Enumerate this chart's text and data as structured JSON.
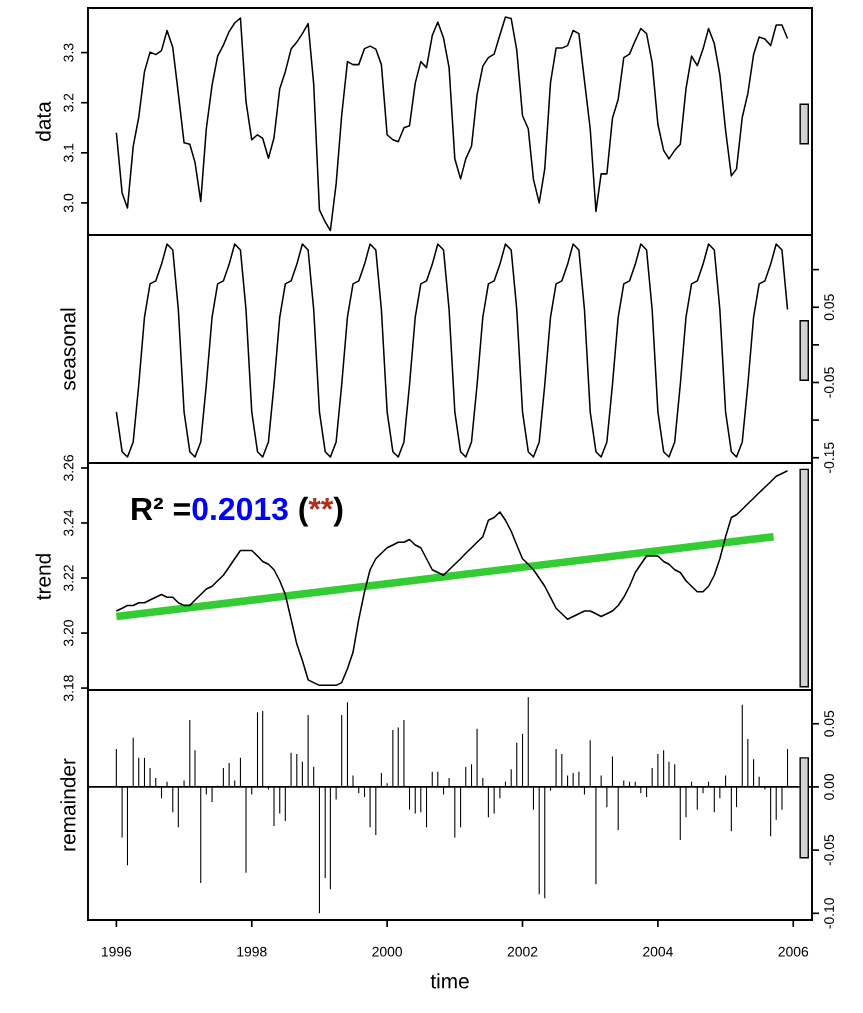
{
  "chart_data": [
    {
      "type": "line",
      "ylabel": "data",
      "tick_labels": "y",
      "x": [
        "1996-01",
        "1996-02",
        "1996-03",
        "1996-04",
        "1996-05",
        "1996-06",
        "1996-07",
        "1996-08",
        "1996-09",
        "1996-10",
        "1996-11",
        "1996-12",
        "1997-01",
        "1997-02",
        "1997-03",
        "1997-04",
        "1997-05",
        "1997-06",
        "1997-07",
        "1997-08",
        "1997-09",
        "1997-10",
        "1997-11",
        "1997-12",
        "1998-01",
        "1998-02",
        "1998-03",
        "1998-04",
        "1998-05",
        "1998-06",
        "1998-07",
        "1998-08",
        "1998-09",
        "1998-10",
        "1998-11",
        "1998-12",
        "1999-01",
        "1999-02",
        "1999-03",
        "1999-04",
        "1999-05",
        "1999-06",
        "1999-07",
        "1999-08",
        "1999-09",
        "1999-10",
        "1999-11",
        "1999-12",
        "2000-01",
        "2000-02",
        "2000-03",
        "2000-04",
        "2000-05",
        "2000-06",
        "2000-07",
        "2000-08",
        "2000-09",
        "2000-10",
        "2000-11",
        "2000-12",
        "2001-01",
        "2001-02",
        "2001-03",
        "2001-04",
        "2001-05",
        "2001-06",
        "2001-07",
        "2001-08",
        "2001-09",
        "2001-10",
        "2001-11",
        "2001-12",
        "2002-01",
        "2002-02",
        "2002-03",
        "2002-04",
        "2002-05",
        "2002-06",
        "2002-07",
        "2002-08",
        "2002-09",
        "2002-10",
        "2002-11",
        "2002-12",
        "2003-01",
        "2003-02",
        "2003-03",
        "2003-04",
        "2003-05",
        "2003-06",
        "2003-07",
        "2003-08",
        "2003-09",
        "2003-10",
        "2003-11",
        "2003-12",
        "2004-01",
        "2004-02",
        "2004-03",
        "2004-04",
        "2004-05",
        "2004-06",
        "2004-07",
        "2004-08",
        "2004-09",
        "2004-10",
        "2004-11",
        "2004-12",
        "2005-01",
        "2005-02",
        "2005-03",
        "2005-04",
        "2005-05",
        "2005-06",
        "2005-07",
        "2005-08",
        "2005-09",
        "2005-10",
        "2005-11",
        "2005-12"
      ],
      "series": [
        {
          "color": "#000000",
          "values": [
            3.14,
            3.02,
            2.99,
            3.113,
            3.171,
            3.262,
            3.301,
            3.296,
            3.304,
            3.344,
            3.31,
            3.218,
            3.12,
            3.117,
            3.081,
            3.003,
            3.148,
            3.235,
            3.293,
            3.315,
            3.342,
            3.359,
            3.369,
            3.202,
            3.126,
            3.136,
            3.129,
            3.089,
            3.13,
            3.228,
            3.262,
            3.307,
            3.321,
            3.338,
            3.358,
            3.237,
            2.986,
            2.962,
            2.945,
            3.038,
            3.175,
            3.282,
            3.276,
            3.276,
            3.308,
            3.313,
            3.307,
            3.276,
            3.136,
            3.126,
            3.122,
            3.15,
            3.154,
            3.239,
            3.282,
            3.27,
            3.334,
            3.361,
            3.329,
            3.27,
            3.088,
            3.048,
            3.088,
            3.113,
            3.216,
            3.273,
            3.29,
            3.297,
            3.335,
            3.371,
            3.368,
            3.305,
            3.174,
            3.148,
            3.047,
            3.0,
            3.068,
            3.24,
            3.309,
            3.309,
            3.314,
            3.344,
            3.338,
            3.244,
            3.148,
            2.983,
            3.058,
            3.058,
            3.169,
            3.207,
            3.29,
            3.297,
            3.324,
            3.348,
            3.338,
            3.28,
            3.157,
            3.105,
            3.088,
            3.105,
            3.117,
            3.228,
            3.293,
            3.274,
            3.307,
            3.348,
            3.318,
            3.256,
            3.145,
            3.054,
            3.068,
            3.171,
            3.218,
            3.296,
            3.331,
            3.327,
            3.314,
            3.355,
            3.355,
            3.328
          ]
        },
        {
          "type": "bar",
          "x": [
            "2006-03-01"
          ],
          "base": [
            3.118
          ],
          "values": [
            0.079
          ],
          "color": "#d3d3d3"
        }
      ],
      "ylim": [
        2.936,
        3.389
      ],
      "yticks": [
        {
          "value": 3,
          "label": "3.0"
        },
        3.1,
        3.2,
        3.3
      ],
      "xlim": [
        "1995-08-01",
        "2006-04-12"
      ],
      "xticks": [
        "1996",
        "1998",
        "2000",
        "2002",
        "2004",
        "2006"
      ]
    },
    {
      "type": "line",
      "ylabel": "seasonal",
      "tick_labels": "y",
      "x": [
        "1996-01",
        "1996-02",
        "1996-03",
        "1996-04",
        "1996-05",
        "1996-06",
        "1996-07",
        "1996-08",
        "1996-09",
        "1996-10",
        "1996-11",
        "1996-12",
        "1997-01",
        "1997-02",
        "1997-03",
        "1997-04",
        "1997-05",
        "1997-06",
        "1997-07",
        "1997-08",
        "1997-09",
        "1997-10",
        "1997-11",
        "1997-12",
        "1998-01",
        "1998-02",
        "1998-03",
        "1998-04",
        "1998-05",
        "1998-06",
        "1998-07",
        "1998-08",
        "1998-09",
        "1998-10",
        "1998-11",
        "1998-12",
        "1999-01",
        "1999-02",
        "1999-03",
        "1999-04",
        "1999-05",
        "1999-06",
        "1999-07",
        "1999-08",
        "1999-09",
        "1999-10",
        "1999-11",
        "1999-12",
        "2000-01",
        "2000-02",
        "2000-03",
        "2000-04",
        "2000-05",
        "2000-06",
        "2000-07",
        "2000-08",
        "2000-09",
        "2000-10",
        "2000-11",
        "2000-12",
        "2001-01",
        "2001-02",
        "2001-03",
        "2001-04",
        "2001-05",
        "2001-06",
        "2001-07",
        "2001-08",
        "2001-09",
        "2001-10",
        "2001-11",
        "2001-12",
        "2002-01",
        "2002-02",
        "2002-03",
        "2002-04",
        "2002-05",
        "2002-06",
        "2002-07",
        "2002-08",
        "2002-09",
        "2002-10",
        "2002-11",
        "2002-12",
        "2003-01",
        "2003-02",
        "2003-03",
        "2003-04",
        "2003-05",
        "2003-06",
        "2003-07",
        "2003-08",
        "2003-09",
        "2003-10",
        "2003-11",
        "2003-12",
        "2004-01",
        "2004-02",
        "2004-03",
        "2004-04",
        "2004-05",
        "2004-06",
        "2004-07",
        "2004-08",
        "2004-09",
        "2004-10",
        "2004-11",
        "2004-12",
        "2005-01",
        "2005-02",
        "2005-03",
        "2005-04",
        "2005-05",
        "2005-06",
        "2005-07",
        "2005-08",
        "2005-09",
        "2005-10",
        "2005-11",
        "2005-12"
      ],
      "series": [
        {
          "color": "#000000",
          "values": [
            -0.089,
            -0.142,
            -0.149,
            -0.129,
            -0.053,
            0.037,
            0.081,
            0.085,
            0.107,
            0.134,
            0.126,
            0.047,
            -0.089,
            -0.142,
            -0.149,
            -0.129,
            -0.053,
            0.037,
            0.081,
            0.085,
            0.107,
            0.134,
            0.126,
            0.047,
            -0.089,
            -0.142,
            -0.149,
            -0.129,
            -0.053,
            0.037,
            0.081,
            0.085,
            0.107,
            0.134,
            0.126,
            0.047,
            -0.089,
            -0.142,
            -0.149,
            -0.129,
            -0.053,
            0.037,
            0.081,
            0.085,
            0.107,
            0.134,
            0.126,
            0.047,
            -0.089,
            -0.142,
            -0.149,
            -0.129,
            -0.053,
            0.037,
            0.081,
            0.085,
            0.107,
            0.134,
            0.126,
            0.047,
            -0.089,
            -0.142,
            -0.149,
            -0.129,
            -0.053,
            0.037,
            0.081,
            0.085,
            0.107,
            0.134,
            0.126,
            0.047,
            -0.089,
            -0.142,
            -0.149,
            -0.129,
            -0.053,
            0.037,
            0.081,
            0.085,
            0.107,
            0.134,
            0.126,
            0.047,
            -0.089,
            -0.142,
            -0.149,
            -0.129,
            -0.053,
            0.037,
            0.081,
            0.085,
            0.107,
            0.134,
            0.126,
            0.047,
            -0.089,
            -0.142,
            -0.149,
            -0.129,
            -0.053,
            0.037,
            0.081,
            0.085,
            0.107,
            0.134,
            0.126,
            0.047,
            -0.089,
            -0.142,
            -0.149,
            -0.129,
            -0.053,
            0.037,
            0.081,
            0.085,
            0.107,
            0.134,
            0.126,
            0.047
          ]
        },
        {
          "type": "bar",
          "x": [
            "2006-03-01"
          ],
          "base": [
            -0.047
          ],
          "values": [
            0.079
          ],
          "color": "#d3d3d3"
        }
      ],
      "ylim": [
        -0.157,
        0.146
      ],
      "yticks": [
        {
          "value": 0.1,
          "label": null
        },
        0.05,
        {
          "value": 0,
          "label": null
        },
        -0.05,
        {
          "value": -0.1,
          "label": null
        },
        -0.15
      ],
      "xlim": [
        "1995-08-01",
        "2006-04-12"
      ],
      "xticks": [
        "1996",
        "1998",
        "2000",
        "2002",
        "2004",
        "2006"
      ]
    },
    {
      "type": "line",
      "ylabel": "trend",
      "tick_labels": "y",
      "x": [
        "1996-01",
        "1996-02",
        "1996-03",
        "1996-04",
        "1996-05",
        "1996-06",
        "1996-07",
        "1996-08",
        "1996-09",
        "1996-10",
        "1996-11",
        "1996-12",
        "1997-01",
        "1997-02",
        "1997-03",
        "1997-04",
        "1997-05",
        "1997-06",
        "1997-07",
        "1997-08",
        "1997-09",
        "1997-10",
        "1997-11",
        "1997-12",
        "1998-01",
        "1998-02",
        "1998-03",
        "1998-04",
        "1998-05",
        "1998-06",
        "1998-07",
        "1998-08",
        "1998-09",
        "1998-10",
        "1998-11",
        "1998-12",
        "1999-01",
        "1999-02",
        "1999-03",
        "1999-04",
        "1999-05",
        "1999-06",
        "1999-07",
        "1999-08",
        "1999-09",
        "1999-10",
        "1999-11",
        "1999-12",
        "2000-01",
        "2000-02",
        "2000-03",
        "2000-04",
        "2000-05",
        "2000-06",
        "2000-07",
        "2000-08",
        "2000-09",
        "2000-10",
        "2000-11",
        "2000-12",
        "2001-01",
        "2001-02",
        "2001-03",
        "2001-04",
        "2001-05",
        "2001-06",
        "2001-07",
        "2001-08",
        "2001-09",
        "2001-10",
        "2001-11",
        "2001-12",
        "2002-01",
        "2002-02",
        "2002-03",
        "2002-04",
        "2002-05",
        "2002-06",
        "2002-07",
        "2002-08",
        "2002-09",
        "2002-10",
        "2002-11",
        "2002-12",
        "2003-01",
        "2003-02",
        "2003-03",
        "2003-04",
        "2003-05",
        "2003-06",
        "2003-07",
        "2003-08",
        "2003-09",
        "2003-10",
        "2003-11",
        "2003-12",
        "2004-01",
        "2004-02",
        "2004-03",
        "2004-04",
        "2004-05",
        "2004-06",
        "2004-07",
        "2004-08",
        "2004-09",
        "2004-10",
        "2004-11",
        "2004-12",
        "2005-01",
        "2005-02",
        "2005-03",
        "2005-04",
        "2005-05",
        "2005-06",
        "2005-07",
        "2005-08",
        "2005-09",
        "2005-10",
        "2005-11",
        "2005-12"
      ],
      "series": [
        {
          "color": "#000000",
          "values": [
            3.208,
            3.209,
            3.21,
            3.21,
            3.211,
            3.211,
            3.212,
            3.213,
            3.214,
            3.213,
            3.213,
            3.211,
            3.21,
            3.21,
            3.212,
            3.214,
            3.216,
            3.217,
            3.219,
            3.221,
            3.224,
            3.227,
            3.23,
            3.23,
            3.23,
            3.228,
            3.226,
            3.225,
            3.223,
            3.219,
            3.214,
            3.205,
            3.196,
            3.19,
            3.183,
            3.182,
            3.181,
            3.181,
            3.181,
            3.181,
            3.182,
            3.187,
            3.193,
            3.205,
            3.215,
            3.223,
            3.227,
            3.229,
            3.231,
            3.232,
            3.233,
            3.233,
            3.234,
            3.232,
            3.231,
            3.227,
            3.223,
            3.222,
            3.221,
            3.223,
            3.225,
            3.227,
            3.229,
            3.231,
            3.233,
            3.235,
            3.241,
            3.242,
            3.244,
            3.241,
            3.237,
            3.232,
            3.227,
            3.225,
            3.223,
            3.22,
            3.217,
            3.213,
            3.209,
            3.207,
            3.205,
            3.206,
            3.207,
            3.208,
            3.208,
            3.207,
            3.206,
            3.207,
            3.208,
            3.21,
            3.213,
            3.217,
            3.222,
            3.225,
            3.228,
            3.228,
            3.228,
            3.226,
            3.225,
            3.223,
            3.222,
            3.219,
            3.217,
            3.215,
            3.215,
            3.217,
            3.221,
            3.227,
            3.235,
            3.242,
            3.243,
            3.245,
            3.247,
            3.249,
            3.251,
            3.253,
            3.255,
            3.257,
            3.258,
            3.259
          ]
        },
        {
          "type": "line",
          "color": "#33cc33",
          "x": [
            "1996-01",
            "2005-09-17"
          ],
          "values": [
            3.206,
            3.235
          ]
        },
        {
          "type": "bar",
          "x": [
            "2006-03-01"
          ],
          "base": [
            3.1805
          ],
          "values": [
            0.079
          ],
          "color": "#d3d3d3"
        }
      ],
      "annotations": [
        "R² =",
        "0.2013",
        " (",
        "**",
        ")"
      ],
      "ylim": [
        3.1793,
        3.2618
      ],
      "yticks": [
        3.18,
        {
          "value": 3.2,
          "label": "3.20"
        },
        3.22,
        3.24,
        3.26
      ],
      "xlim": [
        "1995-08-01",
        "2006-04-12"
      ],
      "xticks": [
        "1996",
        "1998",
        "2000",
        "2002",
        "2004",
        "2006"
      ]
    },
    {
      "type": "bar",
      "ylabel": "remainder",
      "xlabel": "time",
      "x": [
        "1996-01",
        "1996-02",
        "1996-03",
        "1996-04",
        "1996-05",
        "1996-06",
        "1996-07",
        "1996-08",
        "1996-09",
        "1996-10",
        "1996-11",
        "1996-12",
        "1997-01",
        "1997-02",
        "1997-03",
        "1997-04",
        "1997-05",
        "1997-06",
        "1997-07",
        "1997-08",
        "1997-09",
        "1997-10",
        "1997-11",
        "1997-12",
        "1998-01",
        "1998-02",
        "1998-03",
        "1998-04",
        "1998-05",
        "1998-06",
        "1998-07",
        "1998-08",
        "1998-09",
        "1998-10",
        "1998-11",
        "1998-12",
        "1999-01",
        "1999-02",
        "1999-03",
        "1999-04",
        "1999-05",
        "1999-06",
        "1999-07",
        "1999-08",
        "1999-09",
        "1999-10",
        "1999-11",
        "1999-12",
        "2000-01",
        "2000-02",
        "2000-03",
        "2000-04",
        "2000-05",
        "2000-06",
        "2000-07",
        "2000-08",
        "2000-09",
        "2000-10",
        "2000-11",
        "2000-12",
        "2001-01",
        "2001-02",
        "2001-03",
        "2001-04",
        "2001-05",
        "2001-06",
        "2001-07",
        "2001-08",
        "2001-09",
        "2001-10",
        "2001-11",
        "2001-12",
        "2002-01",
        "2002-02",
        "2002-03",
        "2002-04",
        "2002-05",
        "2002-06",
        "2002-07",
        "2002-08",
        "2002-09",
        "2002-10",
        "2002-11",
        "2002-12",
        "2003-01",
        "2003-02",
        "2003-03",
        "2003-04",
        "2003-05",
        "2003-06",
        "2003-07",
        "2003-08",
        "2003-09",
        "2003-10",
        "2003-11",
        "2003-12",
        "2004-01",
        "2004-02",
        "2004-03",
        "2004-04",
        "2004-05",
        "2004-06",
        "2004-07",
        "2004-08",
        "2004-09",
        "2004-10",
        "2004-11",
        "2004-12",
        "2005-01",
        "2005-02",
        "2005-03",
        "2005-04",
        "2005-05",
        "2005-06",
        "2005-07",
        "2005-08",
        "2005-09",
        "2005-10",
        "2005-11",
        "2005-12"
      ],
      "series": [
        {
          "color": "#000000",
          "values": [
            0.03,
            -0.04,
            -0.062,
            0.039,
            0.023,
            0.023,
            0.015,
            0.007,
            -0.009,
            0.004,
            -0.02,
            -0.032,
            0.005,
            0.053,
            0.029,
            -0.076,
            -0.006,
            -0.012,
            0.001,
            0.015,
            0.019,
            0.005,
            0.023,
            -0.068,
            -0.006,
            0.059,
            0.06,
            -0.002,
            -0.031,
            -0.021,
            -0.027,
            0.027,
            0.026,
            0.02,
            0.057,
            0.016,
            -0.1,
            -0.072,
            -0.081,
            -0.01,
            0.057,
            0.067,
            0.009,
            -0.005,
            -0.008,
            -0.032,
            -0.038,
            0.011,
            0.003,
            0.045,
            0.047,
            0.053,
            -0.018,
            -0.021,
            -0.02,
            -0.032,
            0.012,
            0.012,
            -0.006,
            0.007,
            -0.04,
            -0.032,
            0.016,
            0.018,
            0.046,
            0.007,
            -0.024,
            -0.021,
            -0.009,
            0.004,
            0.014,
            0.035,
            0.042,
            0.071,
            -0.018,
            -0.085,
            -0.088,
            -0.003,
            0.03,
            0.026,
            0.009,
            0.011,
            0.012,
            -0.006,
            0.037,
            -0.077,
            0.009,
            -0.016,
            0.024,
            -0.034,
            0.005,
            0.004,
            0.004,
            -0.005,
            -0.008,
            0.015,
            0.026,
            0.029,
            0.02,
            0.018,
            -0.042,
            -0.024,
            0.004,
            -0.018,
            -0.005,
            0.004,
            -0.02,
            -0.009,
            0.009,
            -0.035,
            -0.016,
            0.065,
            0.038,
            0.022,
            0.008,
            -0.002,
            -0.039,
            -0.026,
            -0.018,
            0.03
          ]
        },
        {
          "x": [
            "2006-03-01"
          ],
          "base": [
            -0.056
          ],
          "values": [
            0.079
          ],
          "color": "#d3d3d3"
        }
      ],
      "ref_lines": [
        {
          "axis": "y",
          "value": 0
        }
      ],
      "ylim": [
        -0.1053,
        0.0767
      ],
      "yticks": [
        {
          "value": -0.1,
          "label": "-0.10"
        },
        -0.05,
        {
          "value": 0,
          "label": "0.00"
        },
        0.05
      ],
      "xlim": [
        "1995-08-01",
        "2006-04-12"
      ],
      "xticks": [
        "1996",
        "1998",
        "2000",
        "2002",
        "2004",
        "2006"
      ]
    }
  ]
}
